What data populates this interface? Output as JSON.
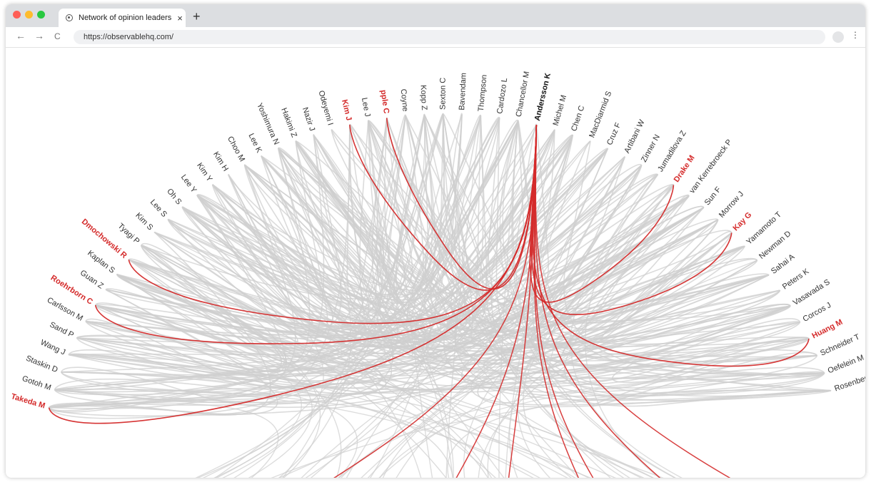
{
  "browser": {
    "tab_title": "Network of opinion leaders",
    "tab_close": "×",
    "new_tab": "+",
    "url": "https://observablehq.com/",
    "nav_back": "←",
    "nav_forward": "→",
    "nav_reload": "C",
    "menu": "⋮"
  },
  "colors": {
    "highlight": "#d42a2a",
    "edge": "#cfcfcf",
    "label": "#333333",
    "focus_label": "#111111"
  },
  "chart_data": {
    "type": "hierarchical edge bundling",
    "focus_node": "Andersson K",
    "nodes": [
      {
        "name": "Takeda M",
        "highlighted": true
      },
      {
        "name": "Gotoh M",
        "highlighted": false
      },
      {
        "name": "Staskin D",
        "highlighted": false
      },
      {
        "name": "Wang J",
        "highlighted": false
      },
      {
        "name": "Sand P",
        "highlighted": false
      },
      {
        "name": "Carlsson M",
        "highlighted": false
      },
      {
        "name": "Roehrborn C",
        "highlighted": true
      },
      {
        "name": "Guan Z",
        "highlighted": false
      },
      {
        "name": "Kaplan S",
        "highlighted": false
      },
      {
        "name": "Dmochowski R",
        "highlighted": true
      },
      {
        "name": "Tyagi P",
        "highlighted": false
      },
      {
        "name": "Kim S",
        "highlighted": false
      },
      {
        "name": "Lee S",
        "highlighted": false
      },
      {
        "name": "Oh S",
        "highlighted": false
      },
      {
        "name": "Lee Y",
        "highlighted": false
      },
      {
        "name": "Kim Y",
        "highlighted": false
      },
      {
        "name": "Kim H",
        "highlighted": false
      },
      {
        "name": "Choo M",
        "highlighted": false
      },
      {
        "name": "Lee K",
        "highlighted": false
      },
      {
        "name": "Yoshimura N",
        "highlighted": false
      },
      {
        "name": "Hakimi Z",
        "highlighted": false
      },
      {
        "name": "Nazir J",
        "highlighted": false
      },
      {
        "name": "Odeyemi I",
        "highlighted": false
      },
      {
        "name": "Kim J",
        "highlighted": true
      },
      {
        "name": "Lee J",
        "highlighted": false
      },
      {
        "name": "Chapple C",
        "highlighted": true,
        "shown": "pple C"
      },
      {
        "name": "Coyne",
        "highlighted": false
      },
      {
        "name": "Kopp Z",
        "highlighted": false
      },
      {
        "name": "Sexton C",
        "highlighted": false
      },
      {
        "name": "Bavendam",
        "highlighted": false
      },
      {
        "name": "Thompson",
        "highlighted": false
      },
      {
        "name": "Cardozo L",
        "highlighted": false
      },
      {
        "name": "Chancellor M",
        "highlighted": false
      },
      {
        "name": "Andersson K",
        "highlighted": false,
        "focus": true
      },
      {
        "name": "Michel M",
        "highlighted": false
      },
      {
        "name": "Chen C",
        "highlighted": false
      },
      {
        "name": "MacDiarmid S",
        "highlighted": false
      },
      {
        "name": "Cruz F",
        "highlighted": false
      },
      {
        "name": "Artibani W",
        "highlighted": false
      },
      {
        "name": "Zinner N",
        "highlighted": false
      },
      {
        "name": "Jumadilova Z",
        "highlighted": false
      },
      {
        "name": "Drake M",
        "highlighted": true
      },
      {
        "name": "van Kerrebroeck P",
        "highlighted": false
      },
      {
        "name": "Sun F",
        "highlighted": false
      },
      {
        "name": "Morrow J",
        "highlighted": false
      },
      {
        "name": "Kay G",
        "highlighted": true
      },
      {
        "name": "Yamamoto T",
        "highlighted": false
      },
      {
        "name": "Newman D",
        "highlighted": false
      },
      {
        "name": "Sahai A",
        "highlighted": false
      },
      {
        "name": "Peters K",
        "highlighted": false
      },
      {
        "name": "Vasavada S",
        "highlighted": false
      },
      {
        "name": "Corcos J",
        "highlighted": false
      },
      {
        "name": "Huang M",
        "highlighted": true
      },
      {
        "name": "Schneider T",
        "highlighted": false
      },
      {
        "name": "Oefelein M",
        "highlighted": false
      },
      {
        "name": "Rosenberg M",
        "highlighted": false
      }
    ]
  }
}
